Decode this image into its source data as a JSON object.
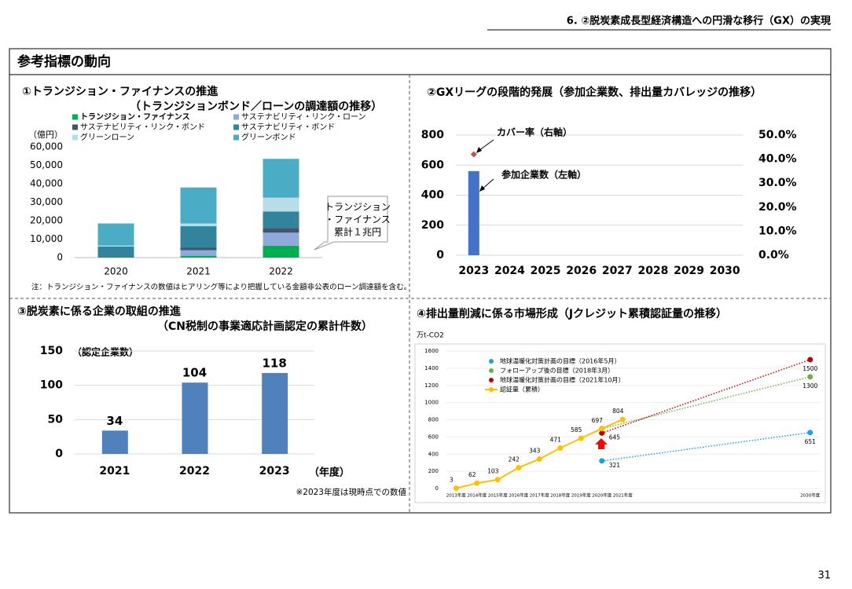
{
  "header": "6. ②脱炭素成長型経済構造への円滑な移行（GX）の実現",
  "section_title": "参考指標の動向",
  "page_number": "31",
  "chart_data": [
    {
      "type": "bar",
      "stacked": true,
      "title": "①トランジション・ファイナンスの推進",
      "subtitle": "（トランジションボンド／ローンの調達額の推移）",
      "y_label": "（億円）",
      "categories": [
        "2020",
        "2021",
        "2022"
      ],
      "series": [
        {
          "name": "トランジション・ファイナンス",
          "color": "#00b050",
          "values": [
            0,
            1000,
            6500
          ]
        },
        {
          "name": "サステナビリティ・リンク・ローン",
          "color": "#8ea9db",
          "values": [
            0,
            3000,
            7000
          ]
        },
        {
          "name": "サステナビリティ・リンク・ボンド",
          "color": "#44546a",
          "values": [
            0,
            1500,
            2500
          ]
        },
        {
          "name": "サステナビリティ・ボンド",
          "color": "#31849b",
          "values": [
            6000,
            11500,
            9000
          ]
        },
        {
          "name": "グリーンローン",
          "color": "#b7dee8",
          "values": [
            500,
            1500,
            7500
          ]
        },
        {
          "name": "グリーンボンド",
          "color": "#4bacc6",
          "values": [
            12000,
            19500,
            21000
          ]
        }
      ],
      "ylim": [
        0,
        60000
      ],
      "yticks": [
        0,
        {
          "value": 10000,
          "label": "10,000"
        },
        {
          "value": 20000,
          "label": "20,000"
        },
        {
          "value": 30000,
          "label": "30,000"
        },
        {
          "value": 40000,
          "label": "40,000"
        },
        {
          "value": 50000,
          "label": "50,000"
        },
        {
          "value": 60000,
          "label": "60,000"
        }
      ],
      "annotation": [
        "トランジション",
        "・ファイナンス",
        "累計１兆円"
      ],
      "note": "注：トランジション・ファイナンスの数値はヒアリング等により把握している金額非公表のローン調達額を含む。"
    },
    {
      "type": "combo",
      "title": "②GXリーグの段階的発展（参加企業数、排出量カバレッジの推移）",
      "categories": [
        "2023",
        "2024",
        "2025",
        "2026",
        "2027",
        "2028",
        "2029",
        "2030"
      ],
      "series": [
        {
          "name": "参加企業数（左軸）",
          "color": "#4472c4",
          "mark": "bar",
          "values": [
            560,
            null,
            null,
            null,
            null,
            null,
            null,
            null
          ]
        },
        {
          "name": "カバー率（右軸）",
          "color": "#c0504d",
          "mark": "point",
          "axis": "y2",
          "values": [
            42,
            null,
            null,
            null,
            null,
            null,
            null,
            null
          ]
        }
      ],
      "ylim": [
        0,
        800
      ],
      "yticks": [
        0,
        200,
        400,
        600,
        800
      ],
      "y2lim": [
        0,
        50
      ],
      "y2ticks": [
        {
          "value": 0,
          "label": "0.0%"
        },
        {
          "value": 10,
          "label": "10.0%"
        },
        {
          "value": 20,
          "label": "20.0%"
        },
        {
          "value": 30,
          "label": "30.0%"
        },
        {
          "value": 40,
          "label": "40.0%"
        },
        {
          "value": 50,
          "label": "50.0%"
        }
      ],
      "grid": true
    },
    {
      "type": "bar",
      "title": "③脱炭素に係る企業の取組の推進",
      "subtitle": "（CN税制の事業適応計画認定の累計件数）",
      "y_label": "（認定企業数）",
      "x_label": "（年度）",
      "categories": [
        "2021",
        "2022",
        "2023"
      ],
      "values": [
        34,
        104,
        118
      ],
      "color": "#4f81bd",
      "ylim": [
        0,
        150
      ],
      "yticks": [
        0,
        50,
        100,
        150
      ],
      "grid": true,
      "note": "※2023年度は現時点での数値"
    },
    {
      "type": "line",
      "title": "④排出量削減に係る市場形成（Jクレジット累積認証量の推移）",
      "y_label": "万t-CO2",
      "xlim": [
        2012.5,
        2030.5
      ],
      "xticks": [
        {
          "value": 2013,
          "label": "2013年度"
        },
        {
          "value": 2014,
          "label": "2014年度"
        },
        {
          "value": 2015,
          "label": "2015年度"
        },
        {
          "value": 2016,
          "label": "2016年度"
        },
        {
          "value": 2017,
          "label": "2017年度"
        },
        {
          "value": 2018,
          "label": "2018年度"
        },
        {
          "value": 2019,
          "label": "2019年度"
        },
        {
          "value": 2020,
          "label": "2020年度"
        },
        {
          "value": 2021,
          "label": "2021年度"
        },
        {
          "value": 2030,
          "label": "2030年度"
        }
      ],
      "ylim": [
        0,
        1600
      ],
      "yticks": [
        0,
        200,
        400,
        600,
        800,
        1000,
        1200,
        1400,
        1600
      ],
      "grid": true,
      "series": [
        {
          "name": "地球温暖化対策計画の目標（2016年5月）",
          "color": "#1fa0e0",
          "style": "dotted",
          "x": [
            2020,
            2030
          ],
          "values": [
            321,
            651
          ],
          "value_labels": [
            "321",
            "651"
          ]
        },
        {
          "name": "フォローアップ後の目標（2018年3月）",
          "color": "#70ad47",
          "style": "dotted",
          "x": [
            2020,
            2030
          ],
          "values": [
            697,
            1300
          ],
          "value_labels": [
            null,
            "1300"
          ]
        },
        {
          "name": "地球温暖化対策計画の目標（2021年10月）",
          "color": "#c00000",
          "style": "dotted",
          "x": [
            2020,
            2030
          ],
          "values": [
            645,
            1500
          ],
          "value_labels": [
            "645",
            "1500"
          ]
        },
        {
          "name": "認証量（累積）",
          "color": "#ffc000",
          "style": "solid",
          "x": [
            2013,
            2014,
            2015,
            2016,
            2017,
            2018,
            2019,
            2020,
            2021
          ],
          "values": [
            3,
            62,
            103,
            242,
            343,
            471,
            585,
            697,
            804
          ],
          "value_labels": [
            "3",
            "62",
            "103",
            "242",
            "343",
            "471",
            "585",
            "697",
            "804"
          ]
        }
      ]
    }
  ]
}
